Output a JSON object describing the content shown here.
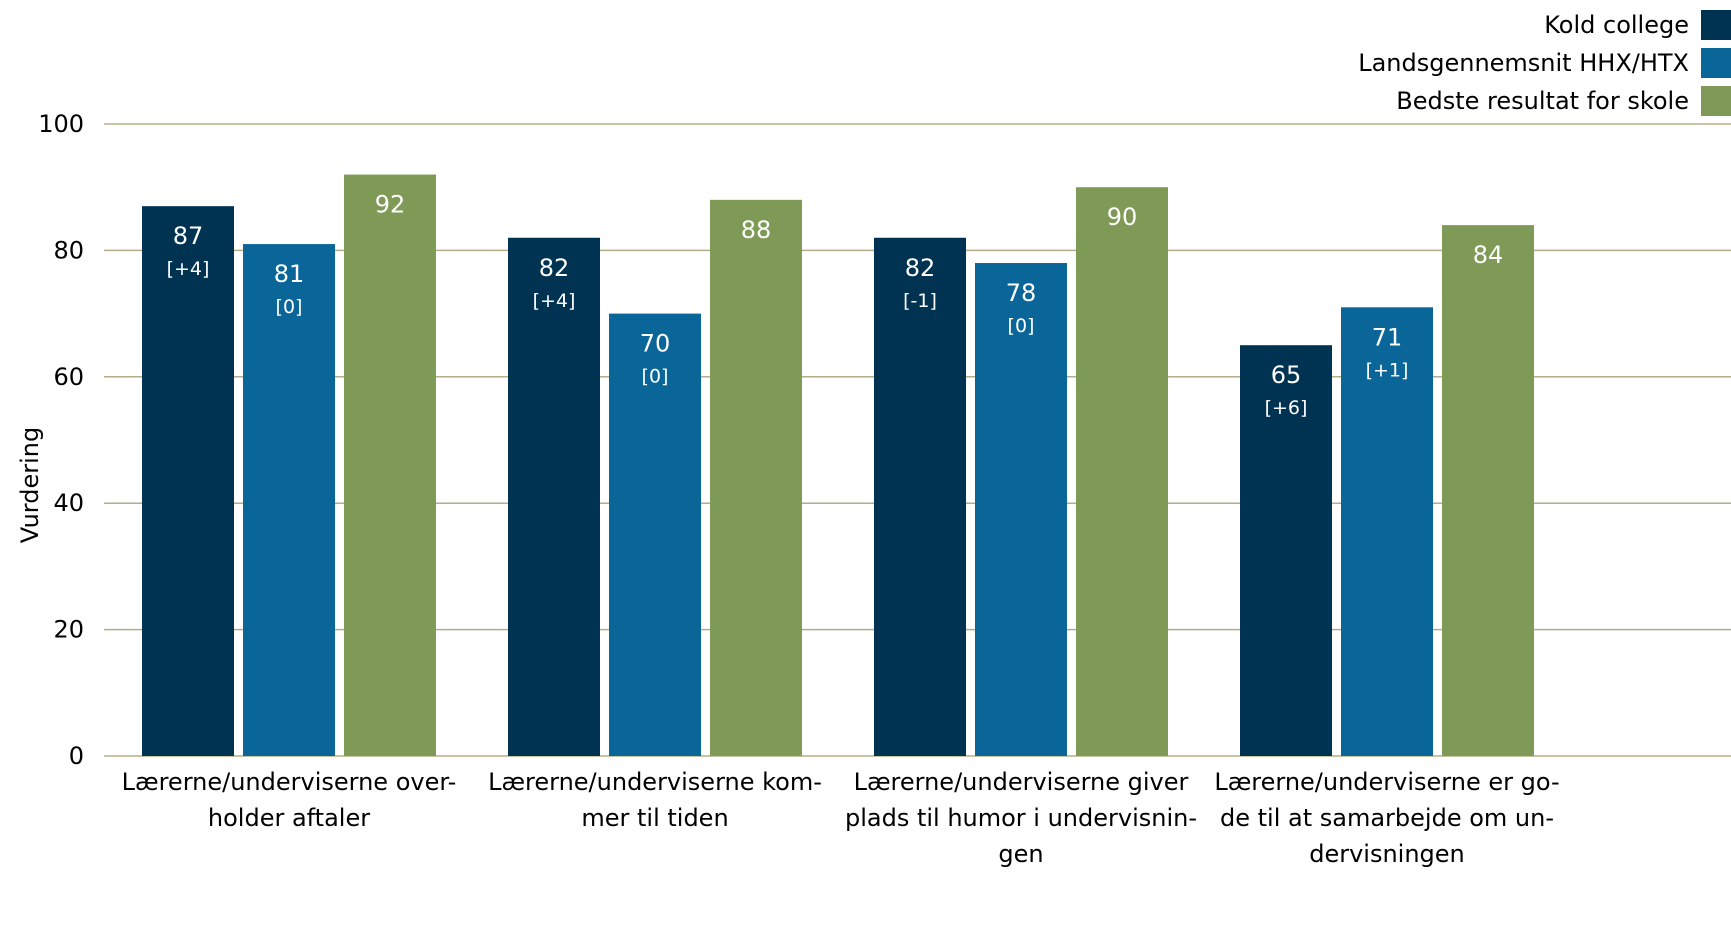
{
  "chart_data": {
    "type": "bar",
    "ylabel": "Vurdering",
    "ylim": [
      0,
      100
    ],
    "yticks": [
      0,
      20,
      40,
      60,
      80,
      100
    ],
    "grid": true,
    "legend_position": "top-right",
    "categories": [
      [
        "Lærerne/underviserne over-",
        "holder aftaler"
      ],
      [
        "Lærerne/underviserne kom-",
        "mer til tiden"
      ],
      [
        "Lærerne/underviserne giver",
        "plads til humor i undervisnin-",
        "gen"
      ],
      [
        "Lærerne/underviserne er go-",
        "de til at samarbejde om un-",
        "dervisningen"
      ]
    ],
    "series": [
      {
        "name": "Kold college",
        "color": "#003352",
        "values": [
          87,
          82,
          82,
          65
        ],
        "changes": [
          "[+4]",
          "[+4]",
          "[-1]",
          "[+6]"
        ]
      },
      {
        "name": "Landsgennemsnit HHX/HTX",
        "color": "#0a6699",
        "values": [
          81,
          70,
          78,
          71
        ],
        "changes": [
          "[0]",
          "[0]",
          "[0]",
          "[+1]"
        ]
      },
      {
        "name": "Bedste resultat for skole",
        "color": "#7e9a56",
        "values": [
          92,
          88,
          90,
          84
        ],
        "changes": [
          "",
          "",
          "",
          ""
        ]
      }
    ],
    "gridline_color": "#b5ad8a"
  }
}
